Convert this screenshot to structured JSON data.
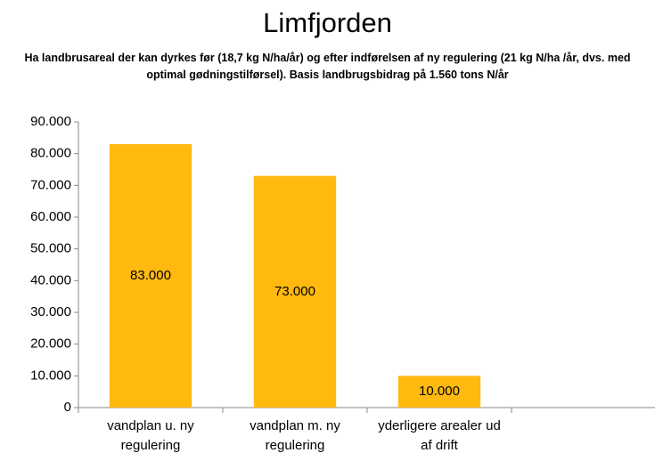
{
  "chart_data": {
    "type": "bar",
    "title": "Limfjorden",
    "subtitle": "Ha landbrusareal der kan dyrkes før (18,7 kg N/ha/år) og efter indførelsen af ny regulering (21 kg N/ha /år, dvs. med optimal gødningstilførsel). Basis landbrugsbidrag på 1.560 tons N/år",
    "categories": [
      "vandplan u. ny regulering",
      "vandplan m. ny regulering",
      "yderligere arealer ud af drift",
      null
    ],
    "values": [
      83000,
      73000,
      10000,
      null
    ],
    "value_labels": [
      "83.000",
      "73.000",
      "10.000",
      null
    ],
    "color": "#ffb90f",
    "ylim": [
      0,
      90000
    ],
    "yticks": [
      0,
      {
        "value": 10000,
        "label": "10.000"
      },
      {
        "value": 20000,
        "label": "20.000"
      },
      {
        "value": 30000,
        "label": "30.000"
      },
      {
        "value": 40000,
        "label": "40.000"
      },
      {
        "value": 50000,
        "label": "50.000"
      },
      {
        "value": 60000,
        "label": "60.000"
      },
      {
        "value": 70000,
        "label": "70.000"
      },
      {
        "value": 80000,
        "label": "80.000"
      },
      {
        "value": 90000,
        "label": "90.000"
      }
    ],
    "grid": false
  }
}
